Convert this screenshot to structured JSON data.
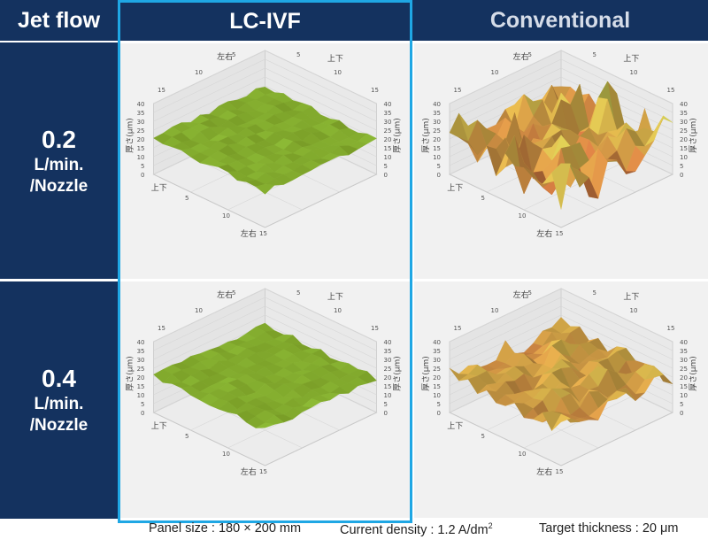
{
  "headers": {
    "jet_flow": "Jet flow",
    "lc_ivf": "LC-IVF",
    "conventional": "Conventional"
  },
  "rows": [
    {
      "value": "0.2",
      "unit": "L/min.",
      "per": "/Nozzle"
    },
    {
      "value": "0.4",
      "unit": "L/min.",
      "per": "/Nozzle"
    }
  ],
  "plot_labels": {
    "z_axis": "厚さ(μm)",
    "lr_axis": "左右",
    "ud_axis": "上下",
    "z_ticks": [
      "0",
      "5",
      "10",
      "15",
      "20",
      "25",
      "30",
      "35",
      "40"
    ],
    "xy_ticks": [
      "5",
      "10",
      "15"
    ]
  },
  "chart_data": [
    {
      "type": "surface",
      "method": "LC-IVF",
      "jet_flow": "0.2 L/min./Nozzle",
      "target_thickness": 20,
      "zlim": [
        0,
        40
      ],
      "variation": "low"
    },
    {
      "type": "surface",
      "method": "Conventional",
      "jet_flow": "0.2 L/min./Nozzle",
      "target_thickness": 20,
      "zlim": [
        0,
        40
      ],
      "variation": "high"
    },
    {
      "type": "surface",
      "method": "LC-IVF",
      "jet_flow": "0.4 L/min./Nozzle",
      "target_thickness": 20,
      "zlim": [
        0,
        40
      ],
      "variation": "low"
    },
    {
      "type": "surface",
      "method": "Conventional",
      "jet_flow": "0.4 L/min./Nozzle",
      "target_thickness": 20,
      "zlim": [
        0,
        40
      ],
      "variation": "medium"
    }
  ],
  "footer": {
    "panel_size": "Panel size : 180 × 200 mm",
    "current_density_prefix": "Current density : 1.2 A/dm",
    "current_density_exp": "2",
    "target_thickness": "Target thickness : 20 μm"
  }
}
